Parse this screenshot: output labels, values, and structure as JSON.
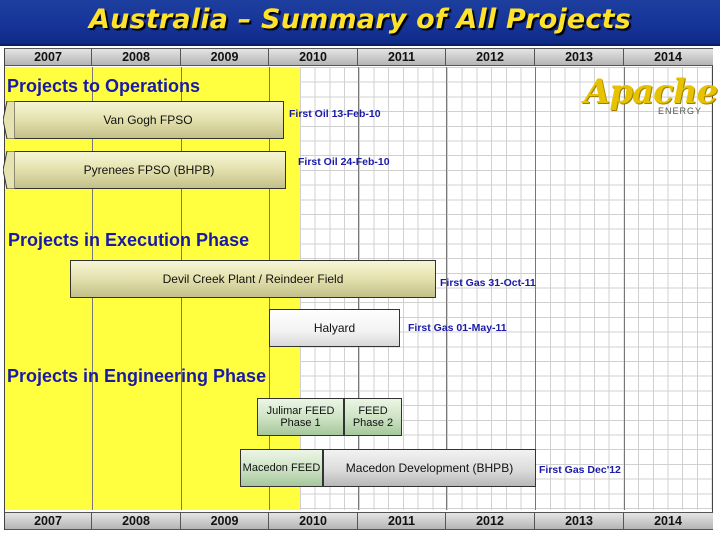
{
  "slide": {
    "title": "Australia – Summary of All Projects"
  },
  "timeline": {
    "years": [
      "2007",
      "2008",
      "2009",
      "2010",
      "2011",
      "2012",
      "2013",
      "2014"
    ]
  },
  "logo": {
    "main": "Apache",
    "sub": "ENERGY"
  },
  "sections": {
    "operations": "Projects to Operations",
    "execution": "Projects in Execution Phase",
    "engineering": "Projects in Engineering Phase"
  },
  "projects": {
    "van_gogh": {
      "label": "Van Gogh FPSO",
      "milestone": "First Oil 13-Feb-10"
    },
    "pyrenees": {
      "label": "Pyrenees FPSO (BHPB)",
      "milestone": "First Oil 24-Feb-10"
    },
    "devil_creek": {
      "label": "Devil Creek Plant / Reindeer Field",
      "milestone": "First Gas 31-Oct-11"
    },
    "halyard": {
      "label": "Halyard",
      "milestone": "First Gas 01-May-11"
    },
    "julimar_feed1": {
      "label": "Julimar FEED Phase 1"
    },
    "julimar_feed2": {
      "label": "FEED Phase 2"
    },
    "macedon_feed": {
      "label": "Macedon FEED"
    },
    "macedon_dev": {
      "label": "Macedon Development (BHPB)",
      "milestone": "First Gas Dec'12"
    }
  },
  "colors": {
    "title_text": "#ffe22a",
    "title_band": "#16349a",
    "highlight_band": "#ffff40",
    "heading_text": "#1a1aa8",
    "milestone_text": "#1a1aa8",
    "logo": "#e6c200"
  }
}
